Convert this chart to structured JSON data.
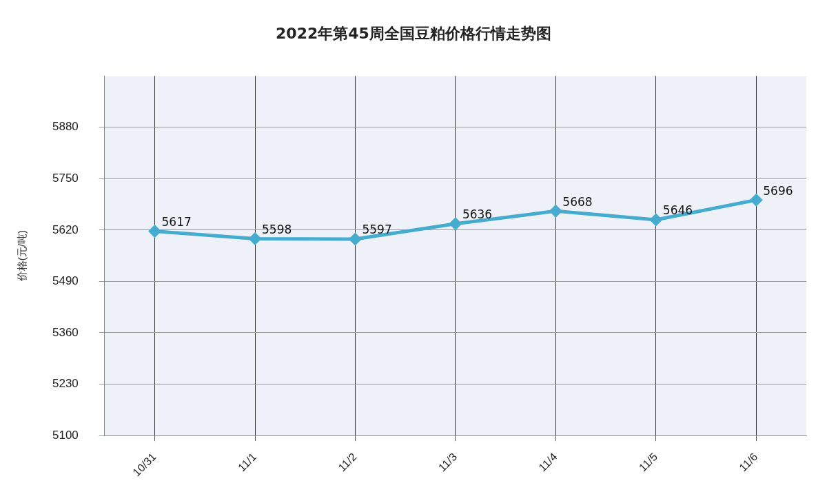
{
  "chart_data": {
    "type": "line",
    "title": "2022年第45周全国豆粕价格行情走势图",
    "ylabel": "价格(元/吨)",
    "categories": [
      "10/31",
      "11/1",
      "11/2",
      "11/3",
      "11/4",
      "11/5",
      "11/6"
    ],
    "series": [
      {
        "color": "#45acd0",
        "values": [
          5617,
          5598,
          5597,
          5636,
          5668,
          5646,
          5696
        ]
      }
    ],
    "ylim": [
      5100,
      6010
    ],
    "yticks": [
      5100,
      5230,
      5360,
      5490,
      5620,
      5750,
      5880
    ],
    "grid": true,
    "marker": "diamond",
    "data_labels": true,
    "legend": false
  }
}
